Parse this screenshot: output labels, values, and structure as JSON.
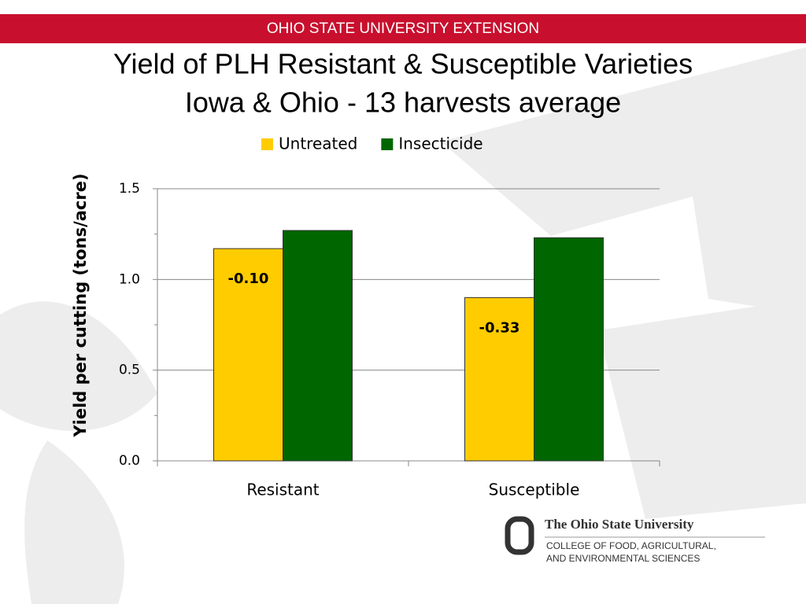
{
  "header": {
    "banner": "OHIO STATE UNIVERSITY EXTENSION"
  },
  "chart_data": {
    "type": "bar",
    "title": "Yield of PLH Resistant & Susceptible Varieties",
    "subtitle": "Iowa & Ohio - 13 harvests average",
    "y_label": "Yield per cutting (tons/acre)",
    "categories": [
      "Resistant",
      "Susceptible"
    ],
    "series": [
      {
        "name": "Untreated",
        "color": "#ffcc00",
        "values": [
          1.17,
          0.9
        ]
      },
      {
        "name": "Insecticide",
        "color": "#006600",
        "values": [
          1.27,
          1.23
        ]
      }
    ],
    "annotations": [
      "-0.10",
      "-0.33"
    ],
    "ylim": [
      0,
      1.5
    ],
    "yticks": [
      {
        "value": 0,
        "label": "0.0"
      },
      {
        "value": 0.5,
        "label": "0.5"
      },
      {
        "value": 1,
        "label": "1.0"
      },
      {
        "value": 1.5,
        "label": "1.5"
      }
    ],
    "minor_yticks": [
      0.25,
      0.75,
      1.25
    ],
    "grid": true,
    "legend": "top"
  },
  "logo": {
    "name": "The Ohio State University",
    "line1": "COLLEGE OF FOOD, AGRICULTURAL,",
    "line2": "AND ENVIRONMENTAL SCIENCES"
  }
}
